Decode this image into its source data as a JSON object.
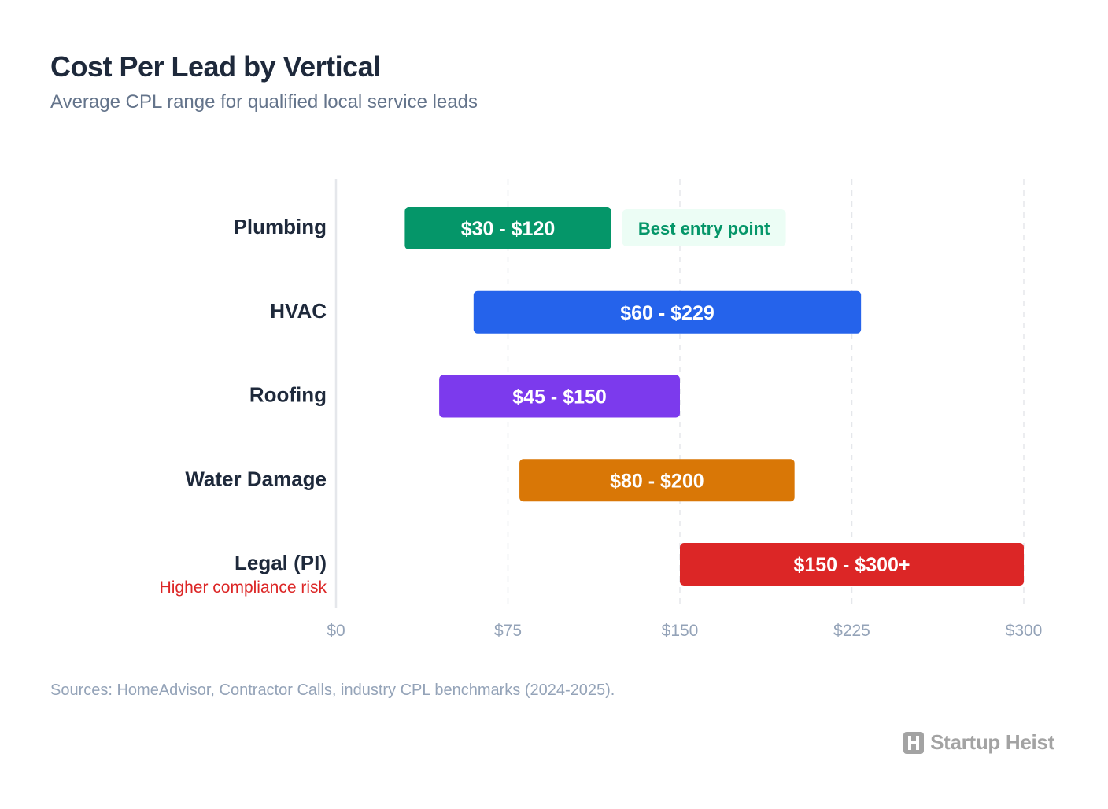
{
  "title": "Cost Per Lead by Vertical",
  "subtitle": "Average CPL range for qualified local service leads",
  "source": "Sources: HomeAdvisor, Contractor Calls, industry CPL benchmarks (2024-2025).",
  "brand": {
    "name": "Startup Heist",
    "icon": "building-h-icon"
  },
  "colors": {
    "plumbing": "#059669",
    "hvac": "#2563eb",
    "roofing": "#7c3aed",
    "water_damage": "#d97706",
    "legal": "#dc2626",
    "annotation_bg": "#ecfdf5",
    "annotation_text": "#059669",
    "risk_text": "#dc2626"
  },
  "chart_data": {
    "type": "bar",
    "orientation": "horizontal-range",
    "title": "Cost Per Lead by Vertical",
    "subtitle": "Average CPL range for qualified local service leads",
    "xlim": [
      0,
      300
    ],
    "xticks": [
      0,
      75,
      150,
      225,
      300
    ],
    "xtick_labels": [
      "$0",
      "$75",
      "$150",
      "$225",
      "$300"
    ],
    "grid": "vertical dashed",
    "categories": [
      "Plumbing",
      "HVAC",
      "Roofing",
      "Water Damage",
      "Legal (PI)"
    ],
    "series": [
      {
        "category": "Plumbing",
        "low": 30,
        "high": 120,
        "label": "$30 - $120",
        "color": "#059669",
        "annotation": "Best entry point"
      },
      {
        "category": "HVAC",
        "low": 60,
        "high": 229,
        "label": "$60 - $229",
        "color": "#2563eb"
      },
      {
        "category": "Roofing",
        "low": 45,
        "high": 150,
        "label": "$45 - $150",
        "color": "#7c3aed"
      },
      {
        "category": "Water Damage",
        "low": 80,
        "high": 200,
        "label": "$80 - $200",
        "color": "#d97706"
      },
      {
        "category": "Legal (PI)",
        "low": 150,
        "high": 300,
        "label": "$150 - $300+",
        "color": "#dc2626",
        "sublabel": "Higher compliance risk"
      }
    ]
  }
}
